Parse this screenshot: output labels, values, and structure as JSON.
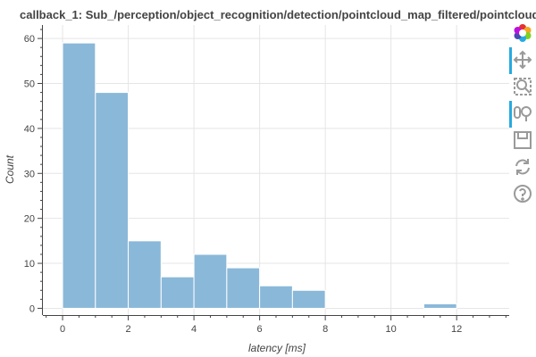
{
  "chart_data": {
    "type": "bar",
    "title": "callback_1: Sub_/perception/object_recognition/detection/pointcloud_map_filtered/pointcloud",
    "xlabel": "latency [ms]",
    "ylabel": "Count",
    "bin_width": 1,
    "bins": [
      {
        "x0": 0,
        "x1": 1,
        "count": 59
      },
      {
        "x0": 1,
        "x1": 2,
        "count": 48
      },
      {
        "x0": 2,
        "x1": 3,
        "count": 15
      },
      {
        "x0": 3,
        "x1": 4,
        "count": 7
      },
      {
        "x0": 4,
        "x1": 5,
        "count": 12
      },
      {
        "x0": 5,
        "x1": 6,
        "count": 9
      },
      {
        "x0": 6,
        "x1": 7,
        "count": 5
      },
      {
        "x0": 7,
        "x1": 8,
        "count": 4
      },
      {
        "x0": 11,
        "x1": 12,
        "count": 1
      }
    ],
    "xlim": [
      -0.6,
      13.6
    ],
    "ylim": [
      -1.5,
      63
    ],
    "x_ticks": [
      0,
      2,
      4,
      6,
      8,
      10,
      12
    ],
    "y_ticks": [
      0,
      10,
      20,
      30,
      40,
      50,
      60
    ],
    "bar_color": "#8ab8d9",
    "bar_edge_color": "#ffffff",
    "grid": true
  },
  "toolbar": {
    "items": [
      {
        "name": "bokeh-logo-icon",
        "active": false
      },
      {
        "name": "pan-icon",
        "active": true
      },
      {
        "name": "box-zoom-icon",
        "active": false
      },
      {
        "name": "wheel-zoom-icon",
        "active": true
      },
      {
        "name": "save-icon",
        "active": false
      },
      {
        "name": "reset-icon",
        "active": false
      },
      {
        "name": "help-icon",
        "active": false
      }
    ],
    "accent_color": "#26aae1"
  }
}
